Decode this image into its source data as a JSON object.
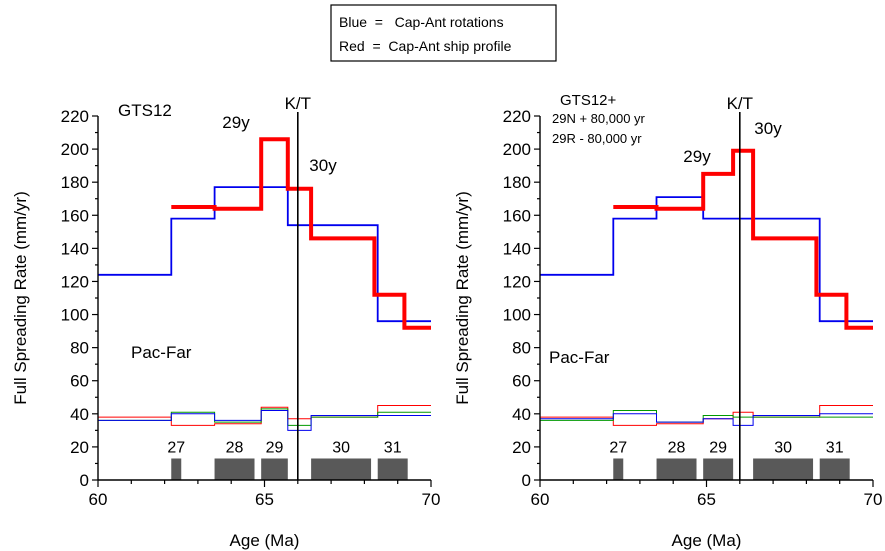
{
  "legend": {
    "line1": "Blue  =   Cap-Ant rotations",
    "line2": "Red  =  Cap-Ant ship profile"
  },
  "chart_data": [
    {
      "type": "line",
      "title": "GTS12",
      "title_lines": [],
      "xlabel": "Age (Ma)",
      "ylabel": "Full Spreading Rate (mm/yr)",
      "xlim": [
        60,
        70
      ],
      "ylim": [
        0,
        220
      ],
      "x_ticks": [
        60,
        65,
        70
      ],
      "y_ticks": [
        0,
        20,
        40,
        60,
        80,
        100,
        120,
        140,
        160,
        180,
        200,
        220
      ],
      "kt_boundary": 66.0,
      "labels": {
        "kt": "K/T",
        "y29": "29y",
        "y30": "30y",
        "plate": "Pac-Far"
      },
      "red_profile": {
        "x": [
          62.2,
          63.5,
          63.5,
          64.9,
          64.9,
          65.7,
          65.7,
          66.4,
          66.4,
          68.3,
          68.3,
          69.2,
          69.2,
          70
        ],
        "y": [
          165,
          165,
          164,
          164,
          206,
          206,
          176,
          176,
          146,
          146,
          112,
          112,
          92,
          92
        ]
      },
      "blue_rotations": {
        "x": [
          60,
          62.2,
          62.2,
          63.5,
          63.5,
          65.7,
          65.7,
          68.4,
          68.4,
          70
        ],
        "y": [
          124,
          124,
          158,
          158,
          177,
          177,
          154,
          154,
          96,
          96
        ]
      },
      "uncertainty": {
        "green": {
          "x": [
            60,
            62.2,
            62.2,
            63.5,
            63.5,
            64.9,
            64.9,
            65.7,
            65.7,
            66.4,
            66.4,
            68.4,
            68.4,
            70
          ],
          "y": [
            36,
            36,
            41,
            41,
            35,
            35,
            43,
            43,
            33,
            33,
            38,
            38,
            41,
            41
          ]
        },
        "red": {
          "x": [
            60,
            62.2,
            62.2,
            63.5,
            63.5,
            64.9,
            64.9,
            65.7,
            65.7,
            66.4,
            66.4,
            68.4,
            68.4,
            70
          ],
          "y": [
            38,
            38,
            33,
            33,
            34,
            34,
            44,
            44,
            37,
            37,
            38,
            38,
            45,
            45
          ]
        },
        "blue": {
          "x": [
            60,
            62.2,
            62.2,
            63.5,
            63.5,
            64.9,
            64.9,
            65.7,
            65.7,
            66.4,
            66.4,
            68.4,
            68.4,
            70
          ],
          "y": [
            36,
            36,
            40,
            40,
            36,
            36,
            42,
            42,
            30,
            30,
            39,
            39,
            39,
            39
          ]
        }
      },
      "chrons": [
        {
          "label": "27",
          "start": 62.2,
          "end": 62.5
        },
        {
          "label": "28",
          "start": 63.5,
          "end": 64.7
        },
        {
          "label": "29",
          "start": 64.9,
          "end": 65.7
        },
        {
          "label": "30",
          "start": 66.4,
          "end": 68.2
        },
        {
          "label": "31",
          "start": 68.4,
          "end": 69.3
        }
      ]
    },
    {
      "type": "line",
      "title": "GTS12+",
      "title_lines": [
        "29N + 80,000 yr",
        "29R  -  80,000 yr"
      ],
      "xlabel": "Age (Ma)",
      "ylabel": "Full Spreading Rate (mm/yr)",
      "xlim": [
        60,
        70
      ],
      "ylim": [
        0,
        220
      ],
      "x_ticks": [
        60,
        65,
        70
      ],
      "y_ticks": [
        0,
        20,
        40,
        60,
        80,
        100,
        120,
        140,
        160,
        180,
        200,
        220
      ],
      "kt_boundary": 66.0,
      "labels": {
        "kt": "K/T",
        "y29": "29y",
        "y30": "30y",
        "plate": "Pac-Far"
      },
      "red_profile": {
        "x": [
          62.2,
          63.5,
          63.5,
          64.9,
          64.9,
          65.8,
          65.8,
          66.4,
          66.4,
          68.3,
          68.3,
          69.2,
          69.2,
          70
        ],
        "y": [
          165,
          165,
          164,
          164,
          185,
          185,
          199,
          199,
          146,
          146,
          112,
          112,
          92,
          92
        ]
      },
      "blue_rotations": {
        "x": [
          60,
          62.2,
          62.2,
          63.5,
          63.5,
          64.9,
          64.9,
          65.8,
          65.8,
          68.4,
          68.4,
          70
        ],
        "y": [
          124,
          124,
          158,
          158,
          171,
          171,
          158,
          158,
          158,
          158,
          96,
          96
        ]
      },
      "uncertainty": {
        "green": {
          "x": [
            60,
            62.2,
            62.2,
            63.5,
            63.5,
            64.9,
            64.9,
            65.8,
            65.8,
            66.4,
            66.4,
            68.4,
            68.4,
            70
          ],
          "y": [
            36,
            36,
            42,
            42,
            35,
            35,
            39,
            39,
            38,
            38,
            38,
            38,
            38,
            38
          ]
        },
        "red": {
          "x": [
            60,
            62.2,
            62.2,
            63.5,
            63.5,
            64.9,
            64.9,
            65.8,
            65.8,
            66.4,
            66.4,
            68.4,
            68.4,
            70
          ],
          "y": [
            38,
            38,
            33,
            33,
            34,
            34,
            37,
            37,
            41,
            41,
            38,
            38,
            45,
            45
          ]
        },
        "blue": {
          "x": [
            60,
            62.2,
            62.2,
            63.5,
            63.5,
            64.9,
            64.9,
            65.8,
            65.8,
            66.4,
            66.4,
            68.4,
            68.4,
            70
          ],
          "y": [
            37,
            37,
            40,
            40,
            35,
            35,
            37,
            37,
            33,
            33,
            39,
            39,
            40,
            40
          ]
        }
      },
      "chrons": [
        {
          "label": "27",
          "start": 62.2,
          "end": 62.5
        },
        {
          "label": "28",
          "start": 63.5,
          "end": 64.7
        },
        {
          "label": "29",
          "start": 64.9,
          "end": 65.8
        },
        {
          "label": "30",
          "start": 66.4,
          "end": 68.2
        },
        {
          "label": "31",
          "start": 68.4,
          "end": 69.3
        }
      ]
    }
  ],
  "colors": {
    "profile_red": "#ff0000",
    "rotation_blue": "#0000ee",
    "uncert_green": "#009900",
    "chron_fill": "#595959"
  }
}
